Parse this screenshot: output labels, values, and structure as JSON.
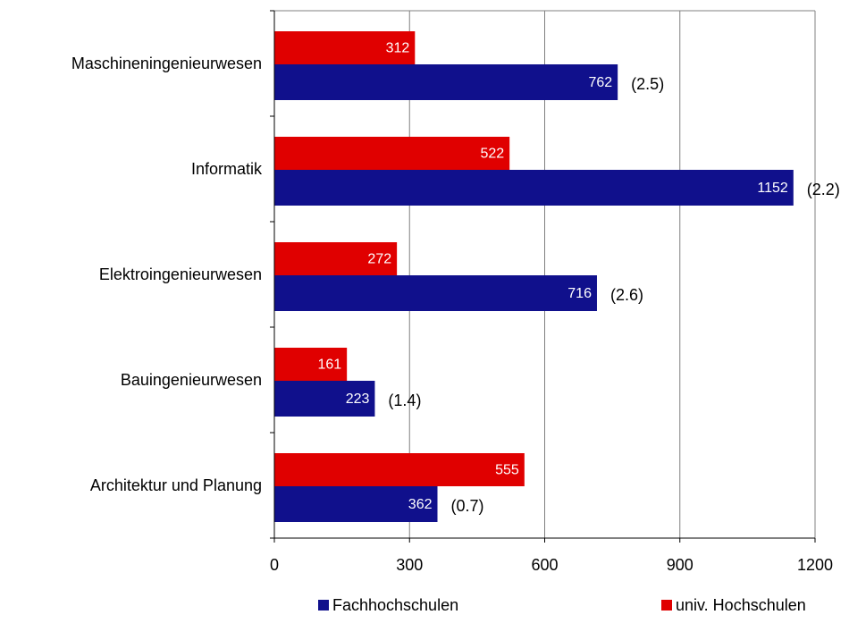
{
  "chart_data": {
    "type": "bar",
    "orientation": "horizontal",
    "categories": [
      "Maschineningenieurwesen",
      "Informatik",
      "Elektroingenieurwesen",
      "Bauingenieurwesen",
      "Architektur und Planung"
    ],
    "series": [
      {
        "name": "Fachhochschulen",
        "color": "#10108c",
        "values": [
          762,
          1152,
          716,
          223,
          362
        ]
      },
      {
        "name": "univ. Hochschulen",
        "color": "#e00000",
        "values": [
          312,
          522,
          272,
          161,
          555
        ]
      }
    ],
    "annotations": [
      "(2.5)",
      "(2.2)",
      "(2.6)",
      "(1.4)",
      "(0.7)"
    ],
    "xlim": [
      0,
      1200
    ],
    "xticks": [
      0,
      300,
      600,
      900,
      1200
    ],
    "grid": true,
    "legend": "bottom"
  }
}
